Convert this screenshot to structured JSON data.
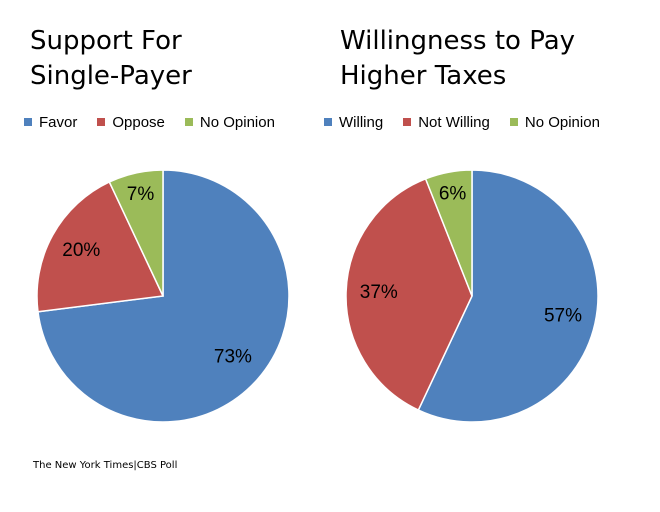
{
  "chart_data": [
    {
      "type": "pie",
      "title_lines": [
        "Support For",
        "Single-Payer"
      ],
      "slices": [
        {
          "label": "Favor",
          "value": 73,
          "display": "73%",
          "color": "#4F81BD"
        },
        {
          "label": "Oppose",
          "value": 20,
          "display": "20%",
          "color": "#C0504D"
        },
        {
          "label": "No Opinion",
          "value": 7,
          "display": "7%",
          "color": "#9BBB59"
        }
      ],
      "legend_position": "top"
    },
    {
      "type": "pie",
      "title_lines": [
        "Willingness to Pay",
        "Higher Taxes"
      ],
      "slices": [
        {
          "label": "Willing",
          "value": 57,
          "display": "57%",
          "color": "#4F81BD"
        },
        {
          "label": "Not Willing",
          "value": 37,
          "display": "37%",
          "color": "#C0504D"
        },
        {
          "label": "No Opinion",
          "value": 6,
          "display": "6%",
          "color": "#9BBB59"
        }
      ],
      "legend_position": "top"
    }
  ],
  "source": "The New York Times|CBS Poll"
}
